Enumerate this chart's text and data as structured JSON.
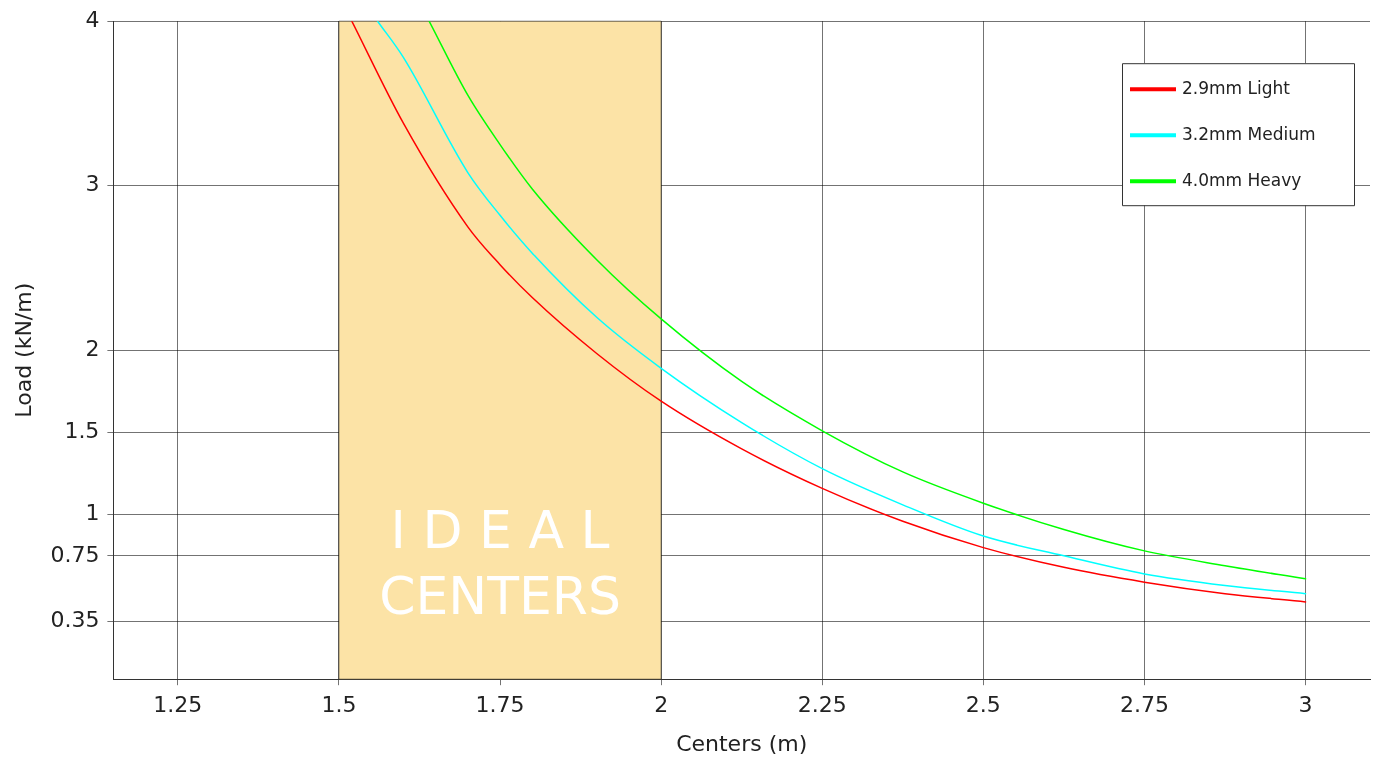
{
  "chart_data": {
    "type": "line",
    "xlabel": "Centers (m)",
    "ylabel": "Load (kN/m)",
    "xlim": [
      1.15,
      3.1
    ],
    "xticks": [
      1.25,
      1.5,
      1.75,
      2,
      2.25,
      2.5,
      2.75,
      3
    ],
    "ylim": [
      0,
      4
    ],
    "yticks": [
      0.35,
      0.75,
      1,
      1.5,
      2,
      3,
      4
    ],
    "grid": true,
    "legend": "top right",
    "marker": "none",
    "line_style": "solid",
    "bands": [
      {
        "axis": "x",
        "from": 1.5,
        "to": 2,
        "label": "I D E A L\nCENTERS",
        "color": "#fce3a6"
      }
    ],
    "series": [
      {
        "name": "2.9mm Light",
        "color": "#ff0000",
        "x": [
          1.52,
          1.6,
          1.7,
          1.75,
          1.8,
          1.9,
          2.0,
          2.125,
          2.25,
          2.375,
          2.5,
          2.625,
          2.75,
          2.875,
          3.0
        ],
        "values": [
          4.0,
          3.38,
          2.75,
          2.52,
          2.32,
          1.98,
          1.69,
          1.4,
          1.16,
          0.96,
          0.8,
          0.68,
          0.59,
          0.52,
          0.47
        ]
      },
      {
        "name": "3.2mm Medium",
        "color": "#00ffff",
        "x": [
          1.56,
          1.6,
          1.7,
          1.75,
          1.8,
          1.9,
          2.0,
          2.125,
          2.25,
          2.375,
          2.5,
          2.625,
          2.75,
          2.875,
          3.0
        ],
        "values": [
          4.0,
          3.78,
          3.08,
          2.82,
          2.59,
          2.2,
          1.89,
          1.56,
          1.28,
          1.06,
          0.87,
          0.75,
          0.64,
          0.57,
          0.52
        ]
      },
      {
        "name": "4.0mm Heavy",
        "color": "#00ff00",
        "x": [
          1.64,
          1.7,
          1.75,
          1.8,
          1.9,
          2.0,
          2.125,
          2.25,
          2.375,
          2.5,
          2.625,
          2.75,
          2.875,
          3.0
        ],
        "values": [
          4.0,
          3.55,
          3.25,
          2.98,
          2.55,
          2.19,
          1.81,
          1.51,
          1.26,
          1.07,
          0.91,
          0.78,
          0.69,
          0.61
        ]
      }
    ]
  }
}
